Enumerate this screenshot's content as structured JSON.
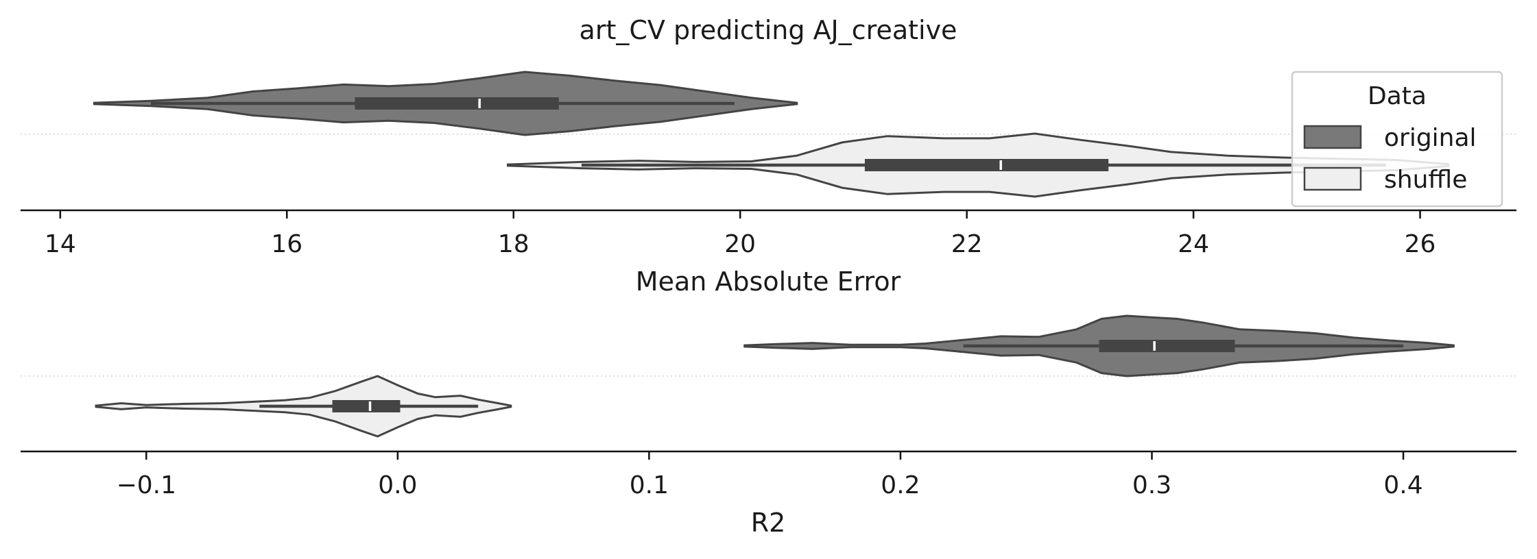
{
  "title": "art_CV predicting AJ_creative",
  "legend": {
    "title": "Data",
    "placement": "upper-right",
    "entries": [
      {
        "label": "original",
        "color": "#797979"
      },
      {
        "label": "shuffle",
        "color": "#efefef"
      }
    ]
  },
  "colors": {
    "original": "#797979",
    "shuffle": "#efefef",
    "stroke": "#444444",
    "box": "#444444",
    "median": "#ffffff"
  },
  "chart_data": [
    {
      "type": "violin",
      "orientation": "horizontal",
      "xlabel": "Mean Absolute Error",
      "xlim": [
        13.65,
        26.85
      ],
      "xticks": [
        14,
        16,
        18,
        20,
        22,
        24,
        26
      ],
      "tick_labels": [
        "14",
        "16",
        "18",
        "20",
        "22",
        "24",
        "26"
      ],
      "grid": "horizontal dotted line between the two groups",
      "series": [
        {
          "name": "original",
          "range": [
            14.3,
            20.5
          ],
          "whiskers": [
            14.8,
            19.95
          ],
          "quartiles": [
            16.6,
            18.4
          ],
          "median": 17.7,
          "density": [
            [
              14.3,
              0.02
            ],
            [
              14.8,
              0.08
            ],
            [
              15.3,
              0.18
            ],
            [
              15.7,
              0.38
            ],
            [
              16.1,
              0.48
            ],
            [
              16.5,
              0.6
            ],
            [
              16.9,
              0.55
            ],
            [
              17.3,
              0.62
            ],
            [
              17.7,
              0.8
            ],
            [
              18.1,
              1.0
            ],
            [
              18.5,
              0.88
            ],
            [
              18.9,
              0.72
            ],
            [
              19.3,
              0.58
            ],
            [
              19.7,
              0.38
            ],
            [
              20.1,
              0.18
            ],
            [
              20.5,
              0.02
            ]
          ]
        },
        {
          "name": "shuffle",
          "range": [
            17.95,
            26.25
          ],
          "whiskers": [
            18.6,
            25.7
          ],
          "quartiles": [
            21.1,
            23.25
          ],
          "median": 22.3,
          "density": [
            [
              17.95,
              0.02
            ],
            [
              18.6,
              0.1
            ],
            [
              19.1,
              0.14
            ],
            [
              19.6,
              0.1
            ],
            [
              20.1,
              0.12
            ],
            [
              20.5,
              0.3
            ],
            [
              20.9,
              0.72
            ],
            [
              21.3,
              0.92
            ],
            [
              21.8,
              0.85
            ],
            [
              22.2,
              0.85
            ],
            [
              22.6,
              1.0
            ],
            [
              23.0,
              0.8
            ],
            [
              23.4,
              0.62
            ],
            [
              23.8,
              0.42
            ],
            [
              24.3,
              0.3
            ],
            [
              24.8,
              0.24
            ],
            [
              25.3,
              0.2
            ],
            [
              25.8,
              0.16
            ],
            [
              26.25,
              0.03
            ]
          ]
        }
      ]
    },
    {
      "type": "violin",
      "orientation": "horizontal",
      "xlabel": "R2",
      "xlim": [
        -0.15,
        0.445
      ],
      "xticks": [
        -0.1,
        0.0,
        0.1,
        0.2,
        0.3,
        0.4
      ],
      "tick_labels": [
        "−0.1",
        "0.0",
        "0.1",
        "0.2",
        "0.3",
        "0.4"
      ],
      "grid": "horizontal dotted line between the two groups",
      "series": [
        {
          "name": "original",
          "range": [
            0.138,
            0.42
          ],
          "whiskers": [
            0.225,
            0.4
          ],
          "quartiles": [
            0.279,
            0.333
          ],
          "median": 0.301,
          "density": [
            [
              0.138,
              0.02
            ],
            [
              0.15,
              0.06
            ],
            [
              0.165,
              0.1
            ],
            [
              0.18,
              0.04
            ],
            [
              0.2,
              0.04
            ],
            [
              0.21,
              0.08
            ],
            [
              0.225,
              0.2
            ],
            [
              0.24,
              0.32
            ],
            [
              0.255,
              0.3
            ],
            [
              0.27,
              0.55
            ],
            [
              0.28,
              0.9
            ],
            [
              0.29,
              1.0
            ],
            [
              0.3,
              0.95
            ],
            [
              0.31,
              0.9
            ],
            [
              0.32,
              0.78
            ],
            [
              0.335,
              0.55
            ],
            [
              0.35,
              0.5
            ],
            [
              0.365,
              0.42
            ],
            [
              0.38,
              0.28
            ],
            [
              0.395,
              0.18
            ],
            [
              0.41,
              0.1
            ],
            [
              0.42,
              0.02
            ]
          ]
        },
        {
          "name": "shuffle",
          "range": [
            -0.12,
            0.045
          ],
          "whiskers": [
            -0.055,
            0.032
          ],
          "quartiles": [
            -0.026,
            0.001
          ],
          "median": -0.011,
          "density": [
            [
              -0.12,
              0.02
            ],
            [
              -0.11,
              0.1
            ],
            [
              -0.1,
              0.04
            ],
            [
              -0.085,
              0.08
            ],
            [
              -0.07,
              0.1
            ],
            [
              -0.055,
              0.16
            ],
            [
              -0.045,
              0.2
            ],
            [
              -0.035,
              0.28
            ],
            [
              -0.025,
              0.5
            ],
            [
              -0.015,
              0.8
            ],
            [
              -0.008,
              1.0
            ],
            [
              0.0,
              0.7
            ],
            [
              0.008,
              0.42
            ],
            [
              0.015,
              0.3
            ],
            [
              0.025,
              0.35
            ],
            [
              0.032,
              0.22
            ],
            [
              0.04,
              0.1
            ],
            [
              0.045,
              0.02
            ]
          ]
        }
      ]
    }
  ]
}
